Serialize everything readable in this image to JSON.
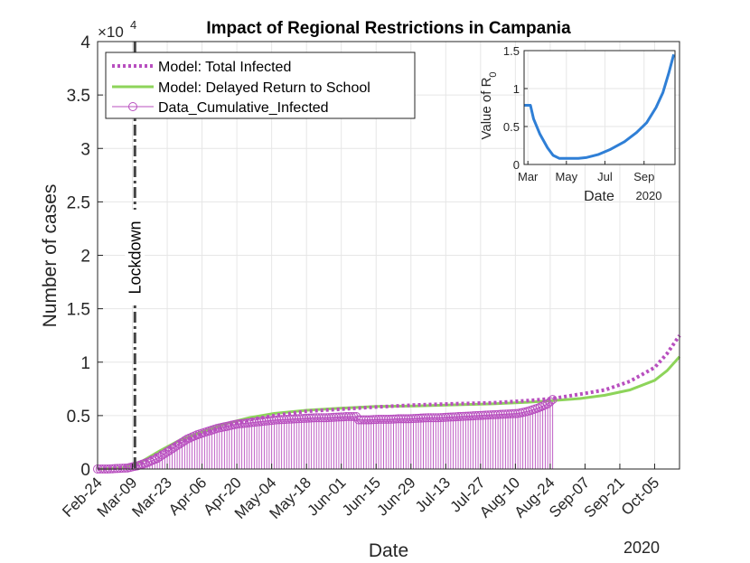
{
  "chart_data": [
    {
      "type": "line",
      "title": "Impact of Regional Restrictions in Campania",
      "xlabel": "Date",
      "ylabel": "Number of cases",
      "y_exponent_label": "×10",
      "y_exponent": "4",
      "year_label": "2020",
      "xlim": [
        "2020-02-24",
        "2020-10-15"
      ],
      "ylim": [
        0,
        4
      ],
      "yticks": [
        0,
        0.5,
        1,
        1.5,
        2,
        2.5,
        3,
        3.5,
        4
      ],
      "ytick_labels": [
        "0",
        "0.5",
        "1",
        "1.5",
        "2",
        "2.5",
        "3",
        "3.5",
        "4"
      ],
      "xticks": [
        "2020-02-24",
        "2020-03-09",
        "2020-03-23",
        "2020-04-06",
        "2020-04-20",
        "2020-05-04",
        "2020-05-18",
        "2020-06-01",
        "2020-06-15",
        "2020-06-29",
        "2020-07-13",
        "2020-07-27",
        "2020-08-10",
        "2020-08-24",
        "2020-09-07",
        "2020-09-21",
        "2020-10-05"
      ],
      "xtick_labels": [
        "Feb-24",
        "Mar-09",
        "Mar-23",
        "Apr-06",
        "Apr-20",
        "May-04",
        "May-18",
        "Jun-01",
        "Jun-15",
        "Jun-29",
        "Jul-13",
        "Jul-27",
        "Aug-10",
        "Aug-24",
        "Sep-07",
        "Sep-21",
        "Oct-05"
      ],
      "grid": true,
      "legend_position": "top-left",
      "annotation": {
        "text": "Lockdown",
        "x": "2020-03-10"
      },
      "series": [
        {
          "name": "Model: Total Infected",
          "style": "dotted",
          "color": "#b84fbf",
          "x": [
            "2020-02-24",
            "2020-03-05",
            "2020-03-12",
            "2020-03-20",
            "2020-03-28",
            "2020-04-06",
            "2020-04-15",
            "2020-04-25",
            "2020-05-05",
            "2020-05-18",
            "2020-06-01",
            "2020-06-15",
            "2020-07-01",
            "2020-07-15",
            "2020-08-01",
            "2020-08-15",
            "2020-08-25",
            "2020-09-05",
            "2020-09-15",
            "2020-09-25",
            "2020-10-05",
            "2020-10-10",
            "2020-10-15"
          ],
          "y": [
            0.0,
            0.01,
            0.05,
            0.15,
            0.25,
            0.33,
            0.4,
            0.46,
            0.5,
            0.54,
            0.56,
            0.58,
            0.6,
            0.61,
            0.62,
            0.64,
            0.66,
            0.7,
            0.74,
            0.82,
            0.95,
            1.08,
            1.25
          ]
        },
        {
          "name": "Model: Delayed Return to School",
          "style": "solid",
          "color": "#8dd45a",
          "x": [
            "2020-02-24",
            "2020-03-05",
            "2020-03-12",
            "2020-03-20",
            "2020-03-28",
            "2020-04-06",
            "2020-04-15",
            "2020-04-25",
            "2020-05-05",
            "2020-05-18",
            "2020-06-01",
            "2020-06-15",
            "2020-07-01",
            "2020-07-15",
            "2020-08-01",
            "2020-08-15",
            "2020-08-25",
            "2020-09-05",
            "2020-09-15",
            "2020-09-25",
            "2020-10-05",
            "2020-10-10",
            "2020-10-15"
          ],
          "y": [
            0.0,
            0.01,
            0.06,
            0.17,
            0.27,
            0.35,
            0.42,
            0.48,
            0.52,
            0.55,
            0.57,
            0.585,
            0.59,
            0.6,
            0.61,
            0.625,
            0.64,
            0.66,
            0.69,
            0.74,
            0.83,
            0.92,
            1.05
          ]
        },
        {
          "name": "Data_Cumulative_Infected",
          "style": "stem",
          "marker": "circle",
          "color": "#b84fbf",
          "x": [
            "2020-02-24",
            "2020-02-28",
            "2020-03-03",
            "2020-03-07",
            "2020-03-11",
            "2020-03-15",
            "2020-03-19",
            "2020-03-23",
            "2020-03-27",
            "2020-03-31",
            "2020-04-04",
            "2020-04-08",
            "2020-04-12",
            "2020-04-16",
            "2020-04-20",
            "2020-04-24",
            "2020-04-28",
            "2020-05-02",
            "2020-05-06",
            "2020-05-10",
            "2020-05-14",
            "2020-05-18",
            "2020-05-22",
            "2020-05-26",
            "2020-05-30",
            "2020-06-03",
            "2020-06-07",
            "2020-06-08",
            "2020-06-12",
            "2020-06-16",
            "2020-06-20",
            "2020-06-24",
            "2020-06-28",
            "2020-07-02",
            "2020-07-06",
            "2020-07-10",
            "2020-07-14",
            "2020-07-18",
            "2020-07-22",
            "2020-07-26",
            "2020-07-30",
            "2020-08-03",
            "2020-08-07",
            "2020-08-11",
            "2020-08-15",
            "2020-08-19",
            "2020-08-23",
            "2020-08-25"
          ],
          "y": [
            0.0,
            0.0,
            0.005,
            0.01,
            0.03,
            0.06,
            0.1,
            0.16,
            0.22,
            0.28,
            0.32,
            0.35,
            0.38,
            0.4,
            0.42,
            0.43,
            0.44,
            0.45,
            0.46,
            0.465,
            0.47,
            0.475,
            0.48,
            0.48,
            0.485,
            0.49,
            0.49,
            0.46,
            0.46,
            0.465,
            0.465,
            0.47,
            0.47,
            0.475,
            0.48,
            0.48,
            0.485,
            0.49,
            0.495,
            0.5,
            0.505,
            0.51,
            0.515,
            0.52,
            0.54,
            0.57,
            0.61,
            0.65
          ]
        }
      ]
    },
    {
      "type": "line",
      "inset": true,
      "title": "",
      "xlabel": "Date",
      "ylabel": "Value of R",
      "ylabel_subscript": "0",
      "year_label": "2020",
      "xlim": [
        "2020-02-24",
        "2020-10-20"
      ],
      "ylim": [
        0,
        1.5
      ],
      "yticks": [
        0,
        0.5,
        1,
        1.5
      ],
      "ytick_labels": [
        "0",
        "0.5",
        "1",
        "1.5"
      ],
      "xticks": [
        "2020-03-01",
        "2020-05-01",
        "2020-07-01",
        "2020-09-01"
      ],
      "xtick_labels": [
        "Mar",
        "May",
        "Jul",
        "Sep"
      ],
      "grid": true,
      "series": [
        {
          "color": "#2f7fd6",
          "x": [
            "2020-02-24",
            "2020-03-05",
            "2020-03-10",
            "2020-03-20",
            "2020-04-01",
            "2020-04-10",
            "2020-04-20",
            "2020-05-05",
            "2020-05-20",
            "2020-06-01",
            "2020-06-20",
            "2020-07-10",
            "2020-08-01",
            "2020-08-20",
            "2020-09-05",
            "2020-09-20",
            "2020-10-01",
            "2020-10-10",
            "2020-10-18"
          ],
          "y": [
            0.78,
            0.78,
            0.6,
            0.4,
            0.22,
            0.12,
            0.08,
            0.08,
            0.08,
            0.09,
            0.13,
            0.2,
            0.3,
            0.42,
            0.55,
            0.75,
            0.95,
            1.2,
            1.45
          ]
        }
      ]
    }
  ]
}
